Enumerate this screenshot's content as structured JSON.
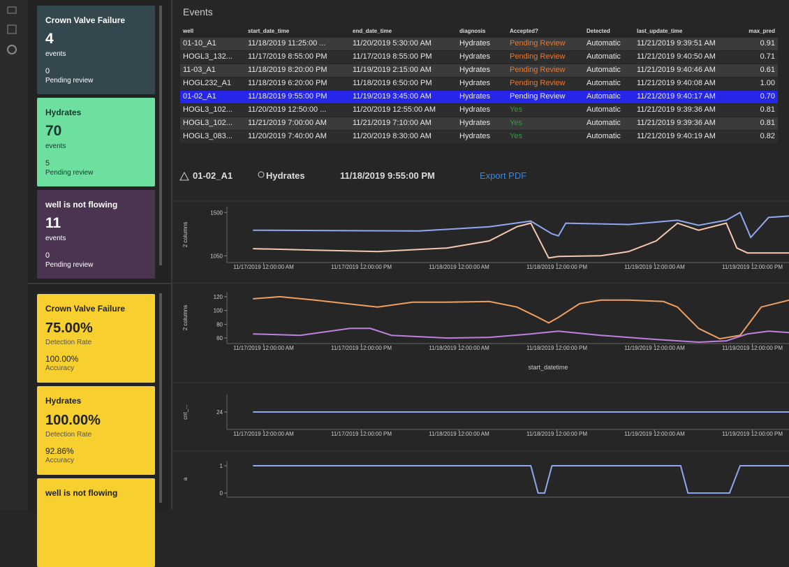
{
  "sidebar": {
    "summary_cards": [
      {
        "title": "Crown Valve Failure",
        "count": "4",
        "count_label": "events",
        "pending": "0",
        "pending_label": "Pending review"
      },
      {
        "title": "Hydrates",
        "count": "70",
        "count_label": "events",
        "pending": "5",
        "pending_label": "Pending review"
      },
      {
        "title": "well is not flowing",
        "count": "11",
        "count_label": "events",
        "pending": "0",
        "pending_label": "Pending review"
      }
    ],
    "rate_cards": [
      {
        "title": "Crown Valve Failure",
        "rate": "75.00%",
        "rate_label": "Detection Rate",
        "accuracy": "100.00%",
        "accuracy_label": "Accuracy"
      },
      {
        "title": "Hydrates",
        "rate": "100.00%",
        "rate_label": "Detection Rate",
        "accuracy": "92.86%",
        "accuracy_label": "Accuracy"
      },
      {
        "title": "well is not flowing"
      }
    ]
  },
  "events_panel": {
    "title": "Events",
    "table": {
      "headers": [
        "well",
        "start_date_time",
        "end_date_time",
        "diagnosis",
        "Accepted?",
        "Detected",
        "last_update_time",
        "max_pred"
      ],
      "selected_row": 4,
      "rows": [
        [
          "01-10_A1",
          "11/18/2019 11:25:00 ...",
          "11/20/2019 5:30:00 AM",
          "Hydrates",
          "Pending Review",
          "Automatic",
          "11/21/2019 9:39:51 AM",
          "0.91"
        ],
        [
          "HOGL3_132...",
          "11/17/2019 8:55:00 PM",
          "11/17/2019 8:55:00 PM",
          "Hydrates",
          "Pending Review",
          "Automatic",
          "11/21/2019 9:40:50 AM",
          "0.71"
        ],
        [
          "11-03_A1",
          "11/18/2019 8:20:00 PM",
          "11/19/2019 2:15:00 AM",
          "Hydrates",
          "Pending Review",
          "Automatic",
          "11/21/2019 9:40:46 AM",
          "0.61"
        ],
        [
          "HOGL232_A1",
          "11/18/2019 6:20:00 PM",
          "11/18/2019 6:50:00 PM",
          "Hydrates",
          "Pending Review",
          "Automatic",
          "11/21/2019 9:40:08 AM",
          "1.00"
        ],
        [
          "01-02_A1",
          "11/18/2019 9:55:00 PM",
          "11/19/2019 3:45:00 AM",
          "Hydrates",
          "Pending Review",
          "Automatic",
          "11/21/2019 9:40:17 AM",
          "0.70"
        ],
        [
          "HOGL3_102...",
          "11/20/2019 12:50:00 ...",
          "11/20/2019 12:55:00 AM",
          "Hydrates",
          "Yes",
          "Automatic",
          "11/21/2019 9:39:36 AM",
          "0.81"
        ],
        [
          "HOGL3_102...",
          "11/21/2019 7:00:00 AM",
          "11/21/2019 7:10:00 AM",
          "Hydrates",
          "Yes",
          "Automatic",
          "11/21/2019 9:39:36 AM",
          "0.81"
        ],
        [
          "HOGL3_083...",
          "11/20/2019 7:40:00 AM",
          "11/20/2019 8:30:00 AM",
          "Hydrates",
          "Yes",
          "Automatic",
          "11/21/2019 9:40:19 AM",
          "0.82"
        ]
      ]
    }
  },
  "detail": {
    "well": "01-02_A1",
    "diagnosis": "Hydrates",
    "start": "11/18/2019 9:55:00 PM",
    "export": "Export PDF"
  },
  "charts": [
    {
      "type": "line",
      "y_label": "2 columns",
      "ylim": [
        980,
        1560
      ],
      "yticks": [
        1500,
        1050
      ],
      "xlim": [
        -4.5,
        64.5
      ],
      "xticks": [
        {
          "value": 0,
          "label": "11/17/2019 12:00:00 AM"
        },
        {
          "value": 12,
          "label": "11/17/2019 12:00:00 PM"
        },
        {
          "value": 24,
          "label": "11/18/2019 12:00:00 AM"
        },
        {
          "value": 36,
          "label": "11/18/2019 12:00:00 PM"
        },
        {
          "value": 48,
          "label": "11/19/2019 12:00:00 AM"
        },
        {
          "value": 60,
          "label": "11/19/2019 12:00:00 PM"
        }
      ],
      "series": [
        {
          "color": "#8fa8f0",
          "x": [
            -1.3,
            19.1,
            27.7,
            32.8,
            35.4,
            36.2,
            37.1,
            44.8,
            50.8,
            53.4,
            56.8,
            58.5,
            59.8,
            62,
            64.5
          ],
          "values": [
            1316,
            1308,
            1352,
            1411,
            1279,
            1257,
            1389,
            1375,
            1419,
            1367,
            1419,
            1500,
            1242,
            1448,
            1463
          ]
        },
        {
          "color": "#f5c8b0",
          "x": [
            -1.3,
            6.3,
            14,
            22.5,
            27.7,
            31.1,
            32.8,
            35,
            36.2,
            41.4,
            44.8,
            48.2,
            50.8,
            53.4,
            56.8,
            58.1,
            59.4,
            64.5
          ],
          "values": [
            1124,
            1109,
            1094,
            1131,
            1205,
            1352,
            1389,
            1028,
            1043,
            1050,
            1094,
            1205,
            1389,
            1316,
            1389,
            1131,
            1080,
            1080
          ]
        }
      ]
    },
    {
      "type": "line",
      "y_label": "2 columns",
      "x_label": "start_datetime",
      "ylim": [
        52,
        127
      ],
      "yticks": [
        120,
        100,
        80,
        60
      ],
      "xlim": [
        -4.5,
        64.5
      ],
      "xticks": [
        {
          "value": 0,
          "label": "11/17/2019 12:00:00 AM"
        },
        {
          "value": 12,
          "label": "11/17/2019 12:00:00 PM"
        },
        {
          "value": 24,
          "label": "11/18/2019 12:00:00 AM"
        },
        {
          "value": 36,
          "label": "11/18/2019 12:00:00 PM"
        },
        {
          "value": 48,
          "label": "11/19/2019 12:00:00 AM"
        },
        {
          "value": 60,
          "label": "11/19/2019 12:00:00 PM"
        }
      ],
      "series": [
        {
          "color": "#f0a060",
          "x": [
            -1.3,
            2,
            6.3,
            14,
            18.3,
            22.5,
            27.7,
            31.1,
            33.7,
            35,
            36.2,
            38.8,
            41.4,
            44.8,
            49.1,
            50.8,
            53.4,
            56,
            58.5,
            61.1,
            64.5
          ],
          "values": [
            117,
            120,
            115,
            105,
            112,
            112,
            113,
            105,
            90,
            82,
            90,
            110,
            115,
            115,
            113,
            105,
            74,
            59,
            64,
            105,
            115
          ]
        },
        {
          "color": "#c080e0",
          "x": [
            -1.3,
            4.5,
            10.6,
            13.1,
            15.7,
            22.5,
            27.7,
            32.8,
            36.2,
            41.4,
            48.2,
            53.4,
            56.8,
            59.4,
            62,
            64.5
          ],
          "values": [
            66,
            64,
            74,
            74,
            64,
            60,
            61,
            66,
            70,
            64,
            58,
            54,
            56,
            66,
            70,
            68
          ]
        }
      ]
    },
    {
      "type": "line",
      "y_label": "cnt_...",
      "ylim": [
        22,
        26
      ],
      "yticks": [
        24
      ],
      "xlim": [
        -4.5,
        64.5
      ],
      "xticks": [
        {
          "value": 0,
          "label": "11/17/2019 12:00:00 AM"
        },
        {
          "value": 12,
          "label": "11/17/2019 12:00:00 PM"
        },
        {
          "value": 24,
          "label": "11/18/2019 12:00:00 AM"
        },
        {
          "value": 36,
          "label": "11/18/2019 12:00:00 PM"
        },
        {
          "value": 48,
          "label": "11/19/2019 12:00:00 AM"
        },
        {
          "value": 60,
          "label": "11/19/2019 12:00:00 PM"
        }
      ],
      "series": [
        {
          "color": "#8fa8f0",
          "x": [
            -1.3,
            64.5
          ],
          "values": [
            24,
            24
          ]
        }
      ]
    },
    {
      "type": "line",
      "y_label": "a",
      "ylim": [
        -0.15,
        1.18
      ],
      "yticks": [
        1,
        0
      ],
      "xlim": [
        -4.5,
        64.5
      ],
      "xticks": [],
      "series": [
        {
          "color": "#8fa8f0",
          "x": [
            -1.3,
            32.8,
            33.7,
            34.5,
            35.4,
            51.2,
            52.1,
            57.2,
            58.5,
            64.5
          ],
          "values": [
            1,
            1,
            0,
            0,
            1,
            1,
            0,
            0,
            1,
            1
          ]
        }
      ]
    }
  ]
}
